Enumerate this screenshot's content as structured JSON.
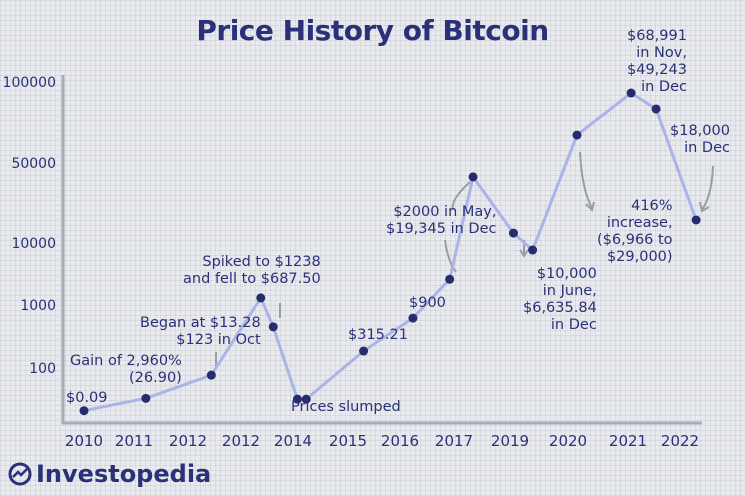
{
  "chart_data": {
    "type": "line",
    "title": "Price History of Bitcoin",
    "xlabel": "",
    "ylabel": "",
    "x_tick_labels": [
      "2010",
      "2011",
      "2012",
      "2012",
      "2014",
      "2015",
      "2016",
      "2017",
      "2019",
      "2020",
      "2021",
      "2022"
    ],
    "y_tick_labels": [
      "100",
      "1000",
      "10000",
      "50000",
      "100000"
    ],
    "y_scale": "non-uniform (log-like)",
    "grid": true,
    "series": [
      {
        "color": "#aab4e8",
        "marker_color": "#252d6e",
        "points": [
          {
            "x": 0.0,
            "y": 21
          },
          {
            "x": 1.22,
            "y": 33
          },
          {
            "x": 2.44,
            "y": 77
          },
          {
            "x": 3.38,
            "y": 1300
          },
          {
            "x": 3.62,
            "y": 450
          },
          {
            "x": 4.08,
            "y": 32
          },
          {
            "x": 4.24,
            "y": 32
          },
          {
            "x": 5.3,
            "y": 186
          },
          {
            "x": 6.24,
            "y": 620
          },
          {
            "x": 6.92,
            "y": 2600
          },
          {
            "x": 7.34,
            "y": 37800
          },
          {
            "x": 8.06,
            "y": 12200
          },
          {
            "x": 8.39,
            "y": 7700
          },
          {
            "x": 9.15,
            "y": 63500
          },
          {
            "x": 10.06,
            "y": 91000
          },
          {
            "x": 10.54,
            "y": 79400
          },
          {
            "x": 11.31,
            "y": 15900
          }
        ]
      }
    ],
    "annotations": {
      "a1": "$0.09",
      "a2": [
        "Gain of 2,960%",
        "(26.90)"
      ],
      "a3": [
        "Began at $13.28",
        "$123 in Oct"
      ],
      "a4": [
        "Spiked to $1238",
        "and fell to $687.50"
      ],
      "a5": "Prices slumped",
      "a6": "$315.21",
      "a7": "$900",
      "a8": [
        "$2000 in May,",
        "$19,345 in Dec"
      ],
      "a9": [
        "$10,000",
        "in June,",
        "$6,635.84",
        "in Dec"
      ],
      "a10": [
        "416%",
        "increase,",
        "($6,966 to",
        "$29,000)"
      ],
      "a11": [
        "$68,991",
        "in Nov,",
        "$49,243",
        "in Dec"
      ],
      "a12": [
        "$18,000",
        "in Dec"
      ]
    }
  },
  "brand": "Investopedia",
  "colors": {
    "text": "#2a3178",
    "line": "#aab4e8",
    "marker": "#252d6e",
    "axis": "#a8abb8",
    "arrow": "#9a9ca6"
  }
}
